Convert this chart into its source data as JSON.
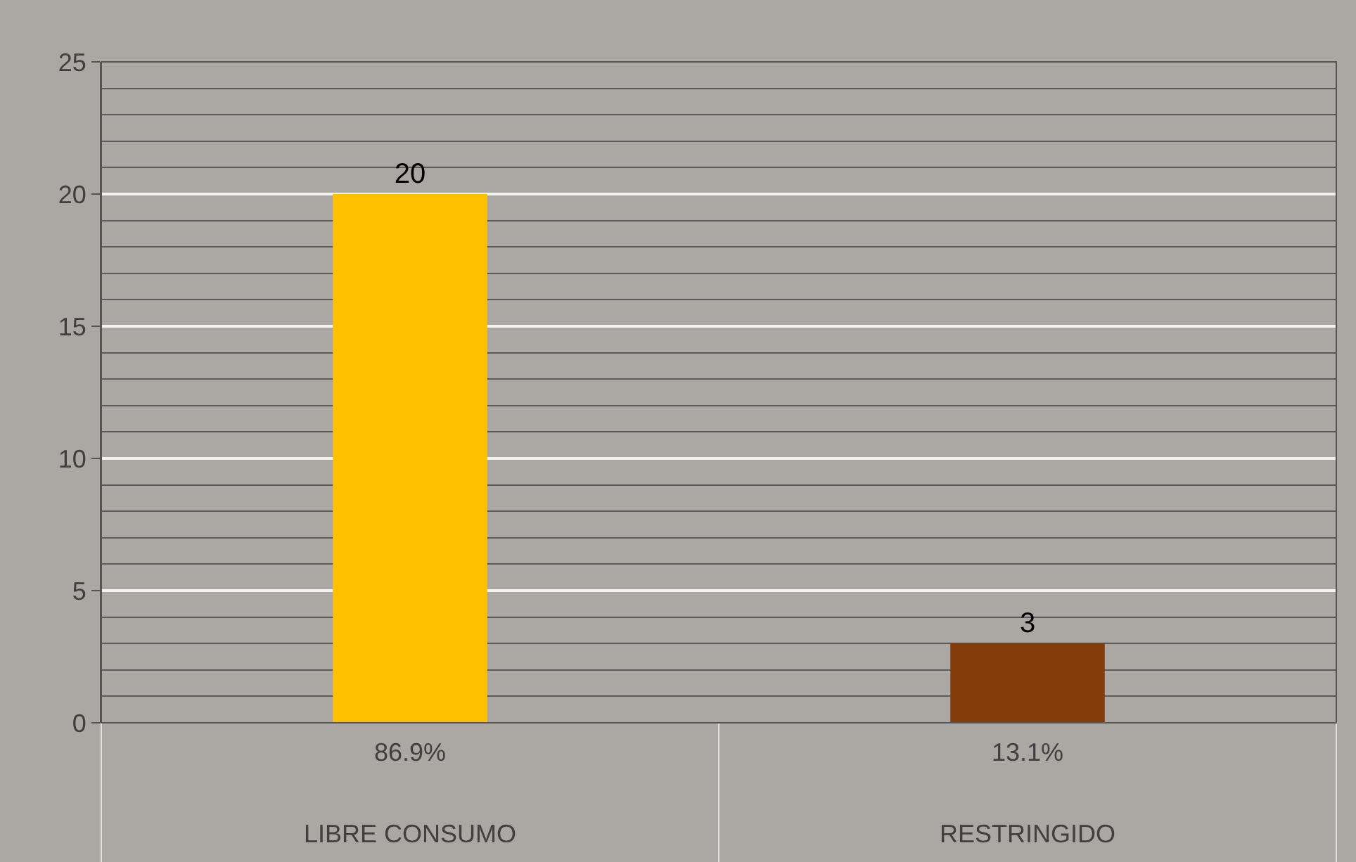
{
  "chart_data": {
    "type": "bar",
    "categories": [
      "LIBRE CONSUMO",
      "RESTRINGIDO"
    ],
    "values": [
      20,
      3
    ],
    "colors": [
      "#ffc000",
      "#843c0c"
    ],
    "data_labels": true,
    "annotations": [
      "86.9%",
      "13.1%"
    ],
    "ylim": [
      0,
      25
    ],
    "yticks": [
      0,
      5,
      10,
      15,
      20,
      25
    ],
    "grid": "y"
  }
}
